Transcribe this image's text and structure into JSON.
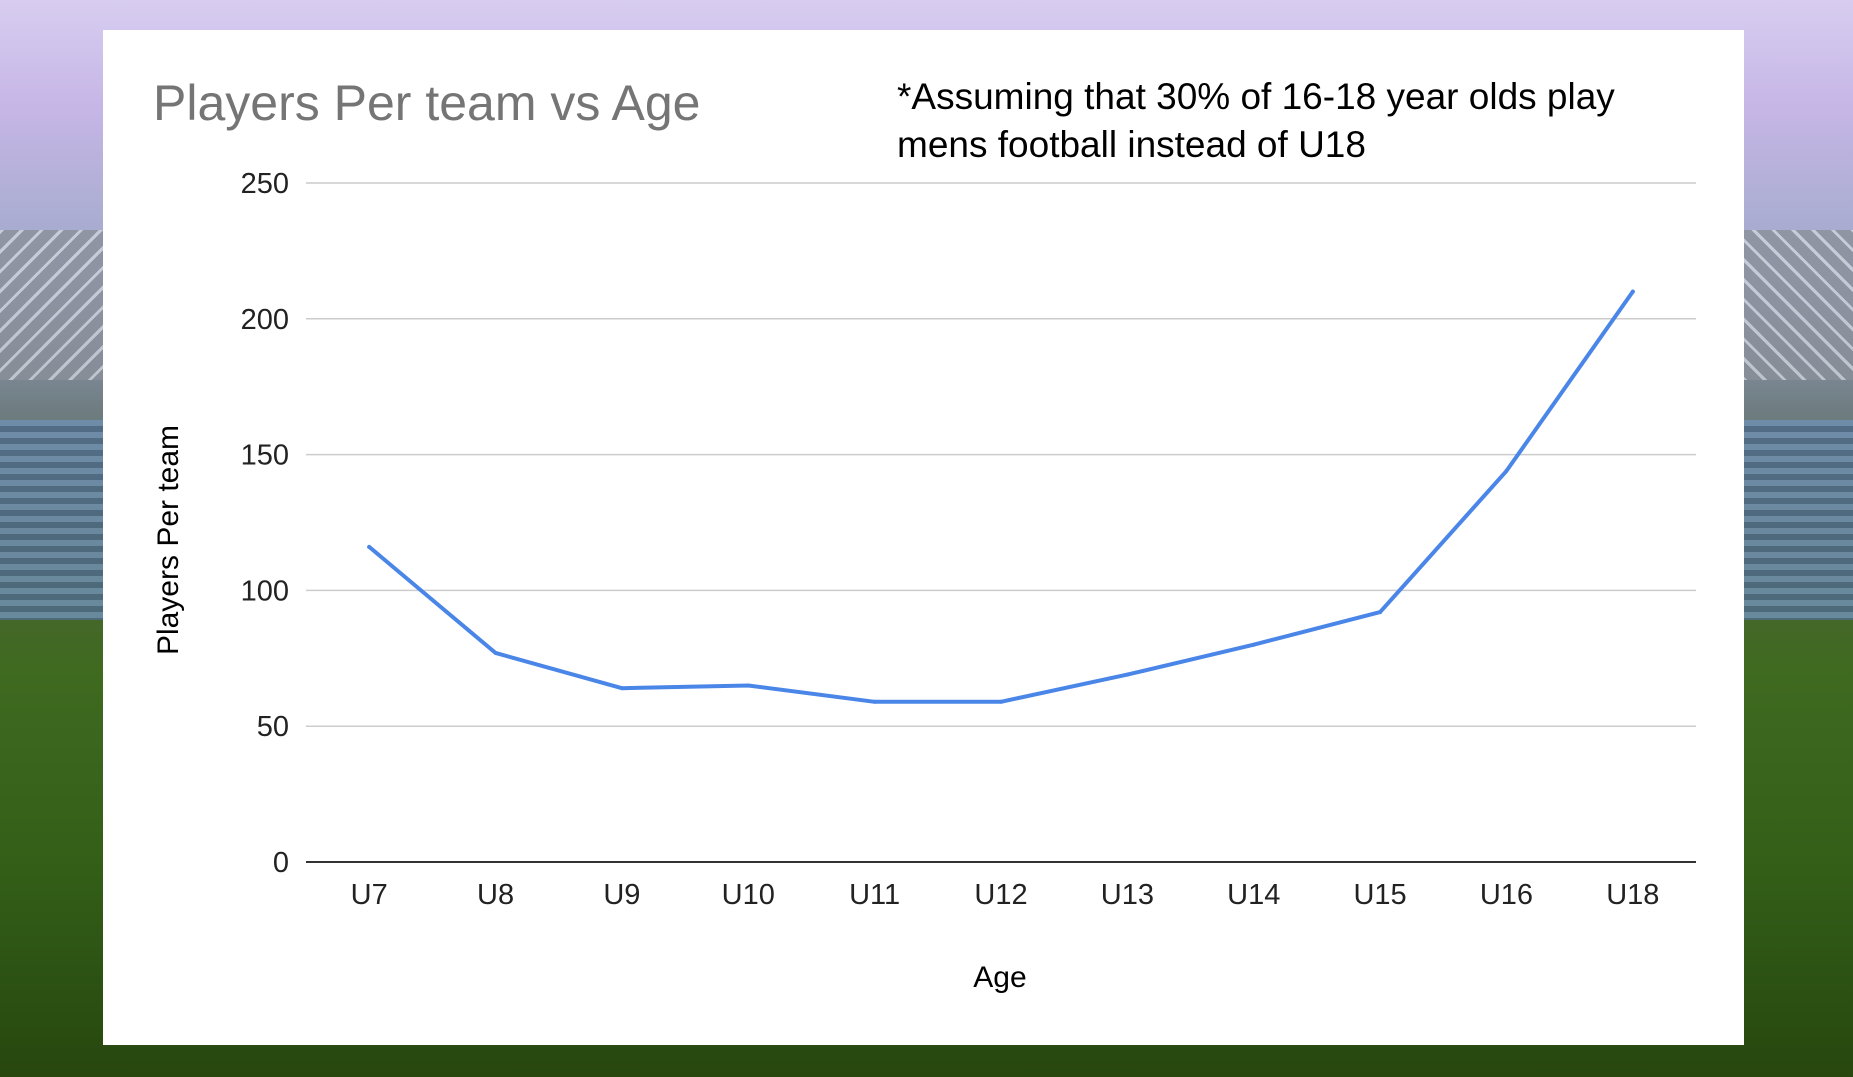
{
  "chart_data": {
    "type": "line",
    "title": "Players Per team vs Age",
    "annotation": [
      "*Assuming that 30% of 16-18 year olds play",
      "mens football instead of U18"
    ],
    "xlabel": "Age",
    "ylabel": "Players Per team",
    "categories": [
      "U7",
      "U8",
      "U9",
      "U10",
      "U11",
      "U12",
      "U13",
      "U14",
      "U15",
      "U16",
      "U18"
    ],
    "series": [
      {
        "values": [
          116,
          77,
          64,
          65,
          59,
          59,
          69,
          80,
          92,
          144,
          210
        ],
        "color": "#4a86e8"
      }
    ],
    "ylim": [
      0,
      250
    ],
    "yticks": [
      0,
      50,
      100,
      150,
      200,
      250
    ],
    "grid": true,
    "legend": "none"
  }
}
